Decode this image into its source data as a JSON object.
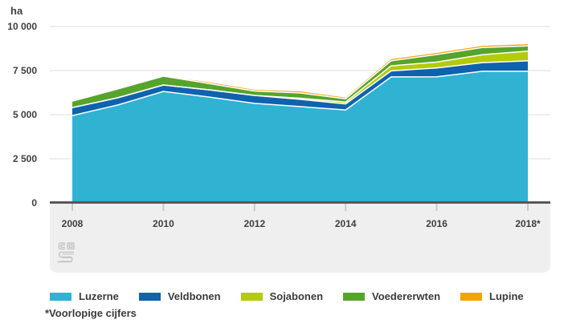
{
  "chart": {
    "unit_label": "ha"
  },
  "footnote": "*Voorlopige cijfers",
  "colors": {
    "gridline": "#dedede",
    "axis_line": "#58585a",
    "panel_background": "#efefef",
    "tick": "#c9c9c9",
    "label_text": "#3f3f3f",
    "legend_text": "#3b3b3b",
    "separator": "#ffffff",
    "logo": "#c6c6c6"
  },
  "chart_data": {
    "type": "area",
    "stacked": true,
    "title": "",
    "xlabel": "",
    "ylabel": "ha",
    "ylim": [
      0,
      10000
    ],
    "grid": true,
    "legend_position": "bottom",
    "x": [
      2008,
      2009,
      2010,
      2011,
      2012,
      2013,
      2014,
      2015,
      2016,
      2017,
      2018
    ],
    "x_tick_years": [
      2008,
      2010,
      2012,
      2014,
      2016,
      2018
    ],
    "x_tick_labels": [
      "2008",
      "2010",
      "2012",
      "2014",
      "2016",
      "2018*"
    ],
    "y_ticks": [
      0,
      2500,
      5000,
      7500,
      10000
    ],
    "y_tick_labels": [
      "0",
      "2 500",
      "5 000",
      "7 500",
      "10 000"
    ],
    "series": [
      {
        "name": "Luzerne",
        "color": "#30b2d3",
        "values": [
          4950,
          5550,
          6320,
          6000,
          5640,
          5460,
          5270,
          7140,
          7150,
          7460,
          7460
        ]
      },
      {
        "name": "Veldbonen",
        "color": "#0f62ae",
        "values": [
          450,
          410,
          360,
          410,
          450,
          410,
          340,
          340,
          500,
          490,
          590
        ]
      },
      {
        "name": "Sojabonen",
        "color": "#b3cb0c",
        "values": [
          0,
          0,
          0,
          0,
          0,
          60,
          110,
          290,
          330,
          450,
          550
        ]
      },
      {
        "name": "Voedererwten",
        "color": "#56a42c",
        "values": [
          370,
          500,
          500,
          360,
          250,
          300,
          180,
          290,
          430,
          410,
          300
        ]
      },
      {
        "name": "Lupine",
        "color": "#f5a20d",
        "values": [
          0,
          0,
          0,
          70,
          70,
          90,
          70,
          90,
          90,
          90,
          100
        ]
      }
    ],
    "totals": [
      5770,
      6460,
      7180,
      6840,
      6410,
      6320,
      5970,
      8150,
      8500,
      8900,
      9000
    ]
  }
}
